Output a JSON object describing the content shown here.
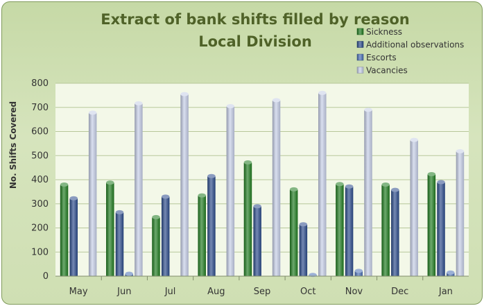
{
  "chart_data": {
    "type": "bar",
    "title": "Extract of bank shifts filled by reason",
    "subtitle": "Local Division",
    "xlabel": "",
    "ylabel": "No. Shifts Covered",
    "ylim": [
      0,
      800
    ],
    "yticks": [
      0,
      100,
      200,
      300,
      400,
      500,
      600,
      700,
      800
    ],
    "grid": true,
    "legend_position": "top-right",
    "categories": [
      "May",
      "Jun",
      "Jul",
      "Aug",
      "Sep",
      "Oct",
      "Nov",
      "Dec",
      "Jan"
    ],
    "series": [
      {
        "name": "Sickness",
        "color": "#1e7a1e",
        "values": [
          380,
          388,
          245,
          335,
          472,
          360,
          382,
          380,
          423
        ]
      },
      {
        "name": "Additional observations",
        "color": "#2a4a8a",
        "values": [
          323,
          265,
          330,
          415,
          290,
          215,
          372,
          358,
          390
        ]
      },
      {
        "name": "Escorts",
        "color": "#4a6fb5",
        "values": [
          0,
          10,
          0,
          0,
          0,
          5,
          22,
          0,
          15
        ]
      },
      {
        "name": "Vacancies",
        "color": "#c5cde6",
        "values": [
          678,
          717,
          755,
          705,
          730,
          760,
          690,
          565,
          518
        ]
      }
    ]
  }
}
